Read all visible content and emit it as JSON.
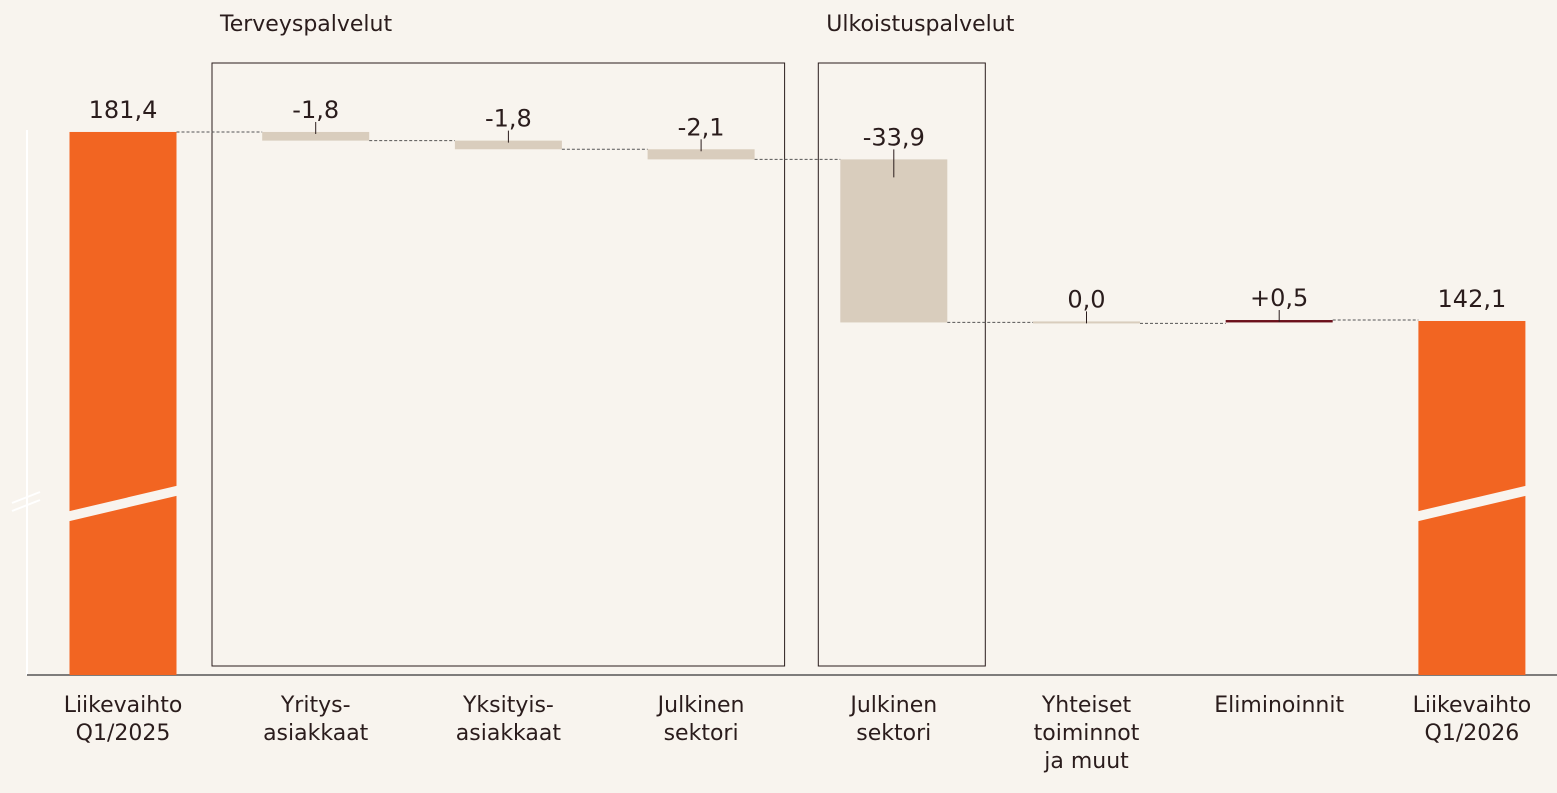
{
  "chart_data": {
    "type": "waterfall",
    "categories": [
      [
        "Liikevaihto",
        "Q1/2025"
      ],
      [
        "Yritys-",
        "asiakkaat"
      ],
      [
        "Yksityis-",
        "asiakkaat"
      ],
      [
        "Julkinen",
        "sektori"
      ],
      [
        "Julkinen",
        "sektori"
      ],
      [
        "Yhteiset",
        "toiminnot",
        "ja muut"
      ],
      [
        "Eliminoinnit"
      ],
      [
        "Liikevaihto",
        "Q1/2026"
      ]
    ],
    "measure": [
      "total",
      "relative",
      "relative",
      "relative",
      "relative",
      "relative",
      "relative",
      "total"
    ],
    "values": [
      181.4,
      -1.8,
      -1.8,
      -2.1,
      -33.9,
      0.0,
      0.5,
      142.1
    ],
    "value_labels": [
      "181,4",
      "-1,8",
      "-1,8",
      "-2,1",
      "-33,9",
      "0,0",
      "+0,5",
      "142,1"
    ],
    "groups": [
      {
        "label": "Terveyspalvelut",
        "from": 1,
        "to": 3
      },
      {
        "label": "Ulkoistuspalvelut",
        "from": 4,
        "to": 4
      }
    ],
    "colors": {
      "total": "#f26522",
      "decrease": "#d9cdbd",
      "increase": "#6b0f1a"
    },
    "ylim": [
      68.5,
      200
    ],
    "axis_break": true
  }
}
